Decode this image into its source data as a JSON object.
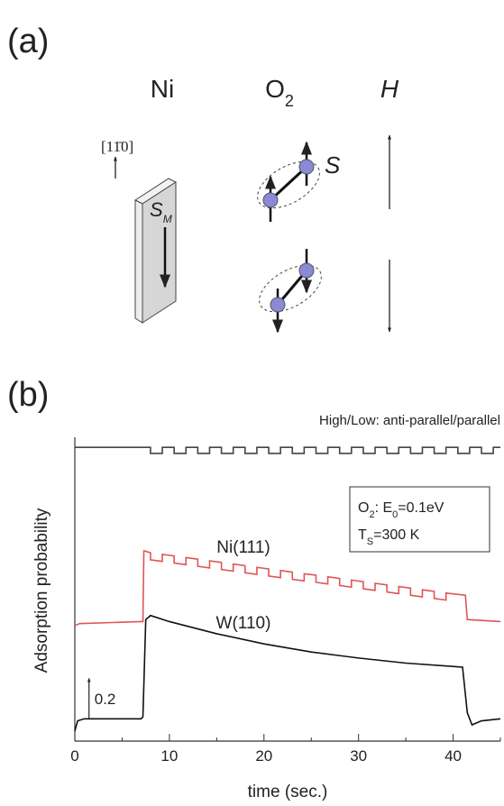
{
  "diagram": {
    "panel": "(a)",
    "ni": "Ni",
    "o2": {
      "base": "O",
      "sub": "2"
    },
    "h": "H",
    "direction": "[11̄0]",
    "sm": {
      "base": "S",
      "sub": "M"
    },
    "s": "S"
  },
  "chart_data": {
    "type": "line",
    "panel": "(b)",
    "xlabel": "time (sec.)",
    "ylabel": "Adsorption probability",
    "xlim": [
      0,
      45
    ],
    "xticks": [
      0,
      10,
      20,
      30,
      40
    ],
    "xminorticks": [
      5,
      15,
      25,
      35,
      45
    ],
    "ylim": [
      0,
      1.5
    ],
    "scale_bar": 0.2,
    "annotation": [
      [
        {
          "t": "O"
        },
        {
          "t": "2",
          "sub": true
        },
        {
          "t": ": E"
        },
        {
          "t": "0",
          "sub": true
        },
        {
          "t": "=0.1eV"
        }
      ],
      [
        {
          "t": "T"
        },
        {
          "t": "S",
          "sub": true
        },
        {
          "t": "=300 K"
        }
      ]
    ],
    "series": [
      {
        "name": "High/Low: anti-parallel/parallel",
        "color": "#444444",
        "x": [
          0,
          8,
          8,
          9.25,
          9.25,
          10.5,
          10.5,
          11.75,
          11.75,
          13,
          13,
          14.25,
          14.25,
          15.5,
          15.5,
          16.75,
          16.75,
          18,
          18,
          19.25,
          19.25,
          20.5,
          20.5,
          21.75,
          21.75,
          23,
          23,
          24.25,
          24.25,
          25.5,
          25.5,
          26.75,
          26.75,
          28,
          28,
          29.25,
          29.25,
          30.5,
          30.5,
          31.75,
          31.75,
          33,
          33,
          34.25,
          34.25,
          35.5,
          35.5,
          36.75,
          36.75,
          38,
          38,
          39.25,
          39.25,
          40.5,
          40.5,
          41.75,
          41.75,
          43,
          43,
          44.25,
          44.25,
          45
        ],
        "values": [
          1.45,
          1.45,
          1.42,
          1.42,
          1.45,
          1.45,
          1.42,
          1.42,
          1.45,
          1.45,
          1.42,
          1.42,
          1.45,
          1.45,
          1.42,
          1.42,
          1.45,
          1.45,
          1.42,
          1.42,
          1.45,
          1.45,
          1.42,
          1.42,
          1.45,
          1.45,
          1.42,
          1.42,
          1.45,
          1.45,
          1.42,
          1.42,
          1.45,
          1.45,
          1.42,
          1.42,
          1.45,
          1.45,
          1.42,
          1.42,
          1.45,
          1.45,
          1.42,
          1.42,
          1.45,
          1.45,
          1.42,
          1.42,
          1.45,
          1.45,
          1.42,
          1.42,
          1.45,
          1.45,
          1.42,
          1.42,
          1.45,
          1.45,
          1.42,
          1.42,
          1.45,
          1.45
        ]
      },
      {
        "name": "Ni(111)",
        "color": "#e05555",
        "x": [
          0,
          0.5,
          7,
          7.2,
          7.3,
          8,
          8,
          9.25,
          9.25,
          10.5,
          10.5,
          11.75,
          11.75,
          13,
          13,
          14.25,
          14.25,
          15.5,
          15.5,
          16.75,
          16.75,
          18,
          18,
          19.25,
          19.25,
          20.5,
          20.5,
          21.75,
          21.75,
          23,
          23,
          24.25,
          24.25,
          25.5,
          25.5,
          26.75,
          26.75,
          28,
          28,
          29.25,
          29.25,
          30.5,
          30.5,
          31.75,
          31.75,
          33,
          33,
          34.25,
          34.25,
          35.5,
          35.5,
          36.75,
          36.75,
          38,
          38,
          39.25,
          39.25,
          41.3,
          41.5,
          45
        ],
        "values": [
          0.57,
          0.58,
          0.59,
          0.59,
          0.94,
          0.93,
          0.895,
          0.887,
          0.922,
          0.914,
          0.879,
          0.871,
          0.906,
          0.898,
          0.863,
          0.855,
          0.89,
          0.882,
          0.847,
          0.839,
          0.874,
          0.866,
          0.831,
          0.823,
          0.858,
          0.85,
          0.815,
          0.807,
          0.842,
          0.834,
          0.799,
          0.791,
          0.826,
          0.819,
          0.784,
          0.776,
          0.811,
          0.803,
          0.768,
          0.76,
          0.795,
          0.787,
          0.752,
          0.744,
          0.779,
          0.771,
          0.736,
          0.728,
          0.763,
          0.755,
          0.72,
          0.712,
          0.747,
          0.739,
          0.704,
          0.696,
          0.731,
          0.72,
          0.6,
          0.59
        ]
      },
      {
        "name": "W(110)",
        "color": "#111111",
        "x": [
          0,
          0.3,
          1,
          7,
          7.2,
          7.5,
          8,
          10,
          15,
          20,
          25,
          30,
          35,
          41,
          41.5,
          42,
          43,
          45
        ],
        "values": [
          0.05,
          0.1,
          0.11,
          0.11,
          0.12,
          0.6,
          0.62,
          0.59,
          0.53,
          0.48,
          0.44,
          0.41,
          0.385,
          0.365,
          0.14,
          0.08,
          0.1,
          0.11
        ]
      }
    ]
  }
}
